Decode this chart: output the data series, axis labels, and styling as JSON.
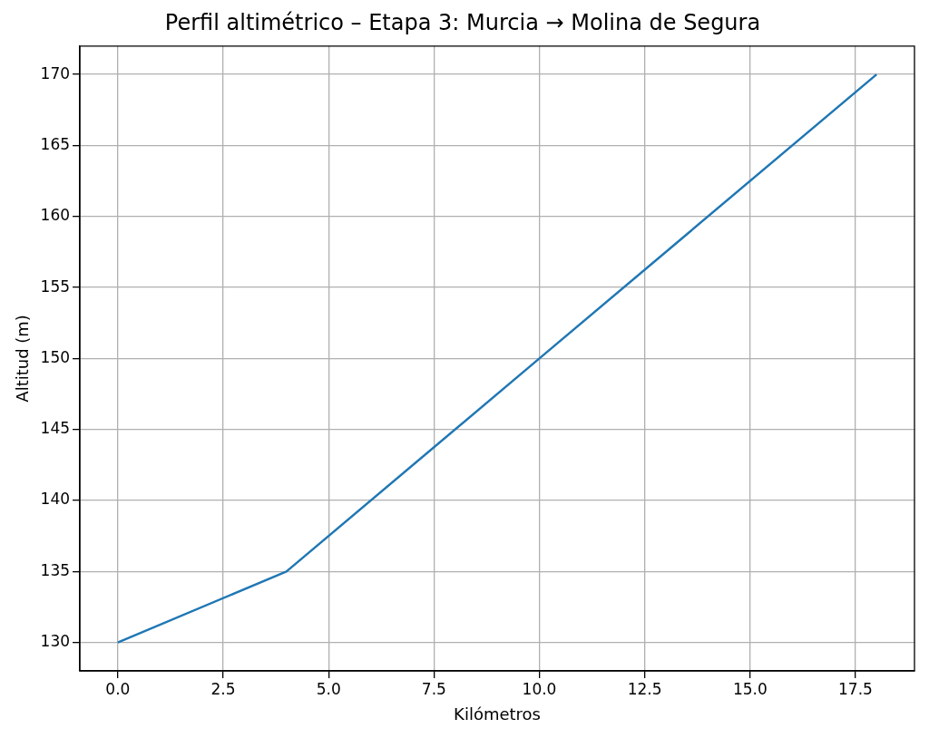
{
  "chart_data": {
    "type": "line",
    "title": "Perfil altimétrico – Etapa 3: Murcia → Molina de Segura",
    "xlabel": "Kilómetros",
    "ylabel": "Altitud (m)",
    "x": [
      0,
      4,
      10,
      18
    ],
    "series": [
      {
        "color": "#1f77b4",
        "values": [
          130,
          135,
          150,
          170
        ]
      }
    ],
    "xlim": [
      -0.9,
      18.9
    ],
    "ylim": [
      128,
      172
    ],
    "xticks": [
      {
        "value": 0,
        "label": "0.0"
      },
      {
        "value": 2.5,
        "label": "2.5"
      },
      {
        "value": 5,
        "label": "5.0"
      },
      {
        "value": 7.5,
        "label": "7.5"
      },
      {
        "value": 10,
        "label": "10.0"
      },
      {
        "value": 12.5,
        "label": "12.5"
      },
      {
        "value": 15,
        "label": "15.0"
      },
      {
        "value": 17.5,
        "label": "17.5"
      }
    ],
    "yticks": [
      130,
      135,
      140,
      145,
      150,
      155,
      160,
      165,
      170
    ],
    "grid": true,
    "legend": false,
    "marker": "none"
  }
}
